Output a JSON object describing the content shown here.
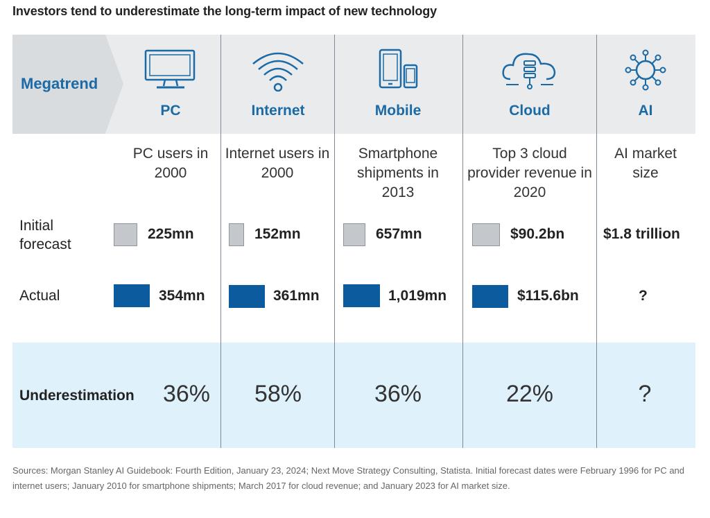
{
  "title": "Investors tend to underestimate the long-term impact of new technology",
  "megatrend_label": "Megatrend",
  "row_labels": {
    "initial_forecast": "Initial forecast",
    "actual": "Actual",
    "underestimation": "Underestimation"
  },
  "colors": {
    "forecast_box": "#c4c8cc",
    "actual_box": "#0b5b9e",
    "accent_text": "#1b6aa5",
    "header_bg": "#e9ebed",
    "underestimation_bg": "#dff2fb"
  },
  "chart_data": {
    "type": "table",
    "title": "Investors tend to underestimate the long-term impact of new technology",
    "columns": [
      {
        "name": "PC",
        "icon": "monitor-icon",
        "metric": "PC users in 2000",
        "initial_forecast": "225mn",
        "actual": "354mn",
        "underestimation": "36%",
        "forecast_value": 225,
        "actual_value": 354
      },
      {
        "name": "Internet",
        "icon": "wifi-icon",
        "metric": "Internet users in 2000",
        "initial_forecast": "152mn",
        "actual": "361mn",
        "underestimation": "58%",
        "forecast_value": 152,
        "actual_value": 361
      },
      {
        "name": "Mobile",
        "icon": "devices-icon",
        "metric": "Smartphone shipments in 2013",
        "initial_forecast": "657mn",
        "actual": "1,019mn",
        "underestimation": "36%",
        "forecast_value": 657,
        "actual_value": 1019
      },
      {
        "name": "Cloud",
        "icon": "cloud-icon",
        "metric": "Top 3 cloud provider revenue in 2020",
        "initial_forecast": "$90.2bn",
        "actual": "$115.6bn",
        "underestimation": "22%",
        "forecast_value": 90.2,
        "actual_value": 115.6
      },
      {
        "name": "AI",
        "icon": "ai-network-icon",
        "metric": "AI market size",
        "initial_forecast": "$1.8 trillion",
        "actual": "?",
        "underestimation": "?",
        "forecast_value": null,
        "actual_value": null
      }
    ]
  },
  "sources": "Sources: Morgan Stanley AI Guidebook: Fourth Edition, January 23, 2024; Next Move Strategy Consulting, Statista. Initial forecast dates were February 1996 for PC and internet users; January 2010 for smartphone shipments; March 2017 for cloud revenue; and January 2023 for AI market size."
}
